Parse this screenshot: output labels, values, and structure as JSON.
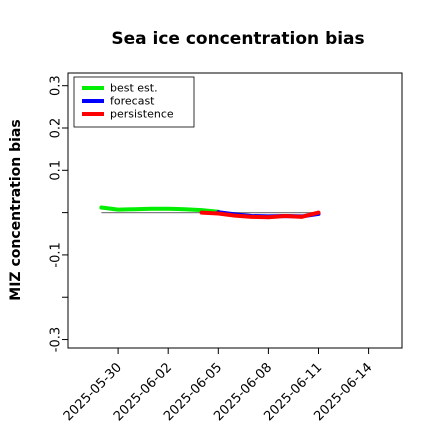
{
  "chart_data": {
    "type": "line",
    "title": "Sea ice concentration bias",
    "ylabel": "MIZ concentration bias",
    "xlabel": "",
    "ylim": [
      -0.32,
      0.33
    ],
    "xlim": [
      "2025-05-27",
      "2025-06-16"
    ],
    "yticks": [
      {
        "value": 0.3,
        "label": "0.3"
      },
      {
        "value": 0.2,
        "label": "0.2"
      },
      {
        "value": 0.1,
        "label": "0.1"
      },
      {
        "value": 0.0,
        "label": ""
      },
      {
        "value": -0.1,
        "label": "-0.1"
      },
      {
        "value": -0.2,
        "label": ""
      },
      {
        "value": -0.3,
        "label": "-0.3"
      }
    ],
    "xticks": [
      {
        "date": "2025-05-30",
        "label": "2025-05-30",
        "color": "#000000"
      },
      {
        "date": "2025-06-02",
        "label": "2025-06-02",
        "color": "#000000"
      },
      {
        "date": "2025-06-05",
        "label": "2025-06-05",
        "color": "#228b22"
      },
      {
        "date": "2025-06-08",
        "label": "2025-06-08",
        "color": "#000000"
      },
      {
        "date": "2025-06-11",
        "label": "2025-06-11",
        "color": "#000000"
      },
      {
        "date": "2025-06-14",
        "label": "2025-06-14",
        "color": "#000000"
      }
    ],
    "zero_line": {
      "from": "2025-05-29",
      "to": "2025-06-11",
      "y": 0.0,
      "color": "#808080"
    },
    "legend_position": "top-left",
    "grid": false,
    "series": [
      {
        "name": "best est.",
        "color": "#00ee00",
        "points": [
          [
            "2025-05-29",
            0.012
          ],
          [
            "2025-05-30",
            0.007
          ],
          [
            "2025-05-31",
            0.008
          ],
          [
            "2025-06-01",
            0.009
          ],
          [
            "2025-06-02",
            0.009
          ],
          [
            "2025-06-03",
            0.008
          ],
          [
            "2025-06-04",
            0.006
          ],
          [
            "2025-06-05",
            0.002
          ]
        ]
      },
      {
        "name": "forecast",
        "color": "#0000ff",
        "points": [
          [
            "2025-06-05",
            0.001
          ],
          [
            "2025-06-06",
            -0.004
          ],
          [
            "2025-06-07",
            -0.008
          ],
          [
            "2025-06-08",
            -0.009
          ],
          [
            "2025-06-09",
            -0.008
          ],
          [
            "2025-06-10",
            -0.009
          ],
          [
            "2025-06-11",
            -0.003
          ]
        ]
      },
      {
        "name": "persistence",
        "color": "#ff0000",
        "points": [
          [
            "2025-06-04",
            0.0
          ],
          [
            "2025-06-05",
            -0.002
          ],
          [
            "2025-06-06",
            -0.007
          ],
          [
            "2025-06-07",
            -0.01
          ],
          [
            "2025-06-08",
            -0.011
          ],
          [
            "2025-06-09",
            -0.008
          ],
          [
            "2025-06-10",
            -0.01
          ],
          [
            "2025-06-11",
            0.0
          ]
        ]
      }
    ]
  }
}
